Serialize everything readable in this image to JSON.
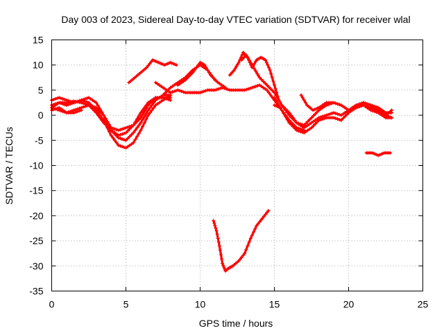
{
  "chart_data": {
    "type": "scatter",
    "title": "Day 003 of 2023, Sidereal Day-to-day VTEC variation (SDTVAR) for receiver wlal",
    "xlabel": "GPS time / hours",
    "ylabel": "SDTVAR / TECUs",
    "xlim": [
      0,
      25
    ],
    "ylim": [
      -35,
      15
    ],
    "xticks": [
      "0",
      "5",
      "10",
      "15",
      "20",
      "25"
    ],
    "yticks": [
      "15",
      "10",
      "5",
      "0",
      "-5",
      "-10",
      "-15",
      "-20",
      "-25",
      "-30",
      "-35"
    ],
    "grid": true,
    "marker": "cross",
    "color": "#ff0000",
    "series": [
      {
        "x": [
          0.0,
          0.5,
          1.0,
          1.5,
          2.0,
          2.5,
          3.0,
          3.5,
          4.0,
          4.5,
          5.0,
          5.5,
          6.0,
          6.5,
          7.0,
          7.5,
          8.0
        ],
        "y": [
          3.0,
          3.5,
          3.0,
          2.5,
          3.0,
          2.5,
          1.0,
          -1.0,
          -4.0,
          -6.0,
          -6.5,
          -5.5,
          -3.0,
          0.0,
          2.0,
          3.0,
          4.0
        ]
      },
      {
        "x": [
          0.0,
          0.5,
          1.0,
          1.5,
          2.0,
          2.5,
          3.0,
          3.5,
          4.0,
          4.5,
          5.0,
          5.5,
          6.0,
          6.5,
          7.0,
          7.5,
          8.0
        ],
        "y": [
          1.5,
          2.5,
          2.5,
          2.8,
          2.5,
          2.0,
          0.5,
          -1.5,
          -3.0,
          -4.0,
          -3.5,
          -2.0,
          0.5,
          2.5,
          3.5,
          3.5,
          3.5
        ]
      },
      {
        "x": [
          0.0,
          0.5,
          1.0,
          1.5,
          2.0,
          2.5,
          3.0,
          3.5,
          4.0,
          4.5,
          5.0,
          5.5,
          6.0,
          6.5,
          7.0,
          7.5,
          8.0
        ],
        "y": [
          2.0,
          2.5,
          2.0,
          2.5,
          3.0,
          3.5,
          2.5,
          0.0,
          -3.0,
          -4.5,
          -5.0,
          -3.5,
          -1.5,
          1.0,
          3.0,
          4.0,
          4.0
        ]
      },
      {
        "x": [
          0.0,
          0.5,
          1.0,
          1.5,
          2.0,
          2.5,
          3.0,
          3.5,
          4.0,
          4.5,
          5.0,
          5.5,
          6.0,
          6.5,
          7.0,
          7.5,
          8.0
        ],
        "y": [
          1.0,
          1.5,
          0.5,
          1.0,
          1.5,
          2.0,
          1.5,
          0.0,
          -2.5,
          -3.0,
          -2.5,
          -2.0,
          -0.5,
          2.0,
          3.5,
          3.5,
          3.0
        ]
      },
      {
        "x": [
          0.0,
          0.5,
          1.0,
          1.5,
          2.0
        ],
        "y": [
          1.5,
          1.0,
          0.5,
          0.5,
          1.0
        ]
      },
      {
        "x": [
          5.2,
          5.6,
          6.0,
          6.4,
          6.8,
          7.2,
          7.6,
          8.0,
          8.4
        ],
        "y": [
          6.5,
          7.5,
          8.5,
          9.5,
          11.0,
          10.5,
          10.0,
          10.5,
          10.0
        ]
      },
      {
        "x": [
          7.0,
          7.5,
          8.0,
          8.5,
          9.0,
          9.5,
          10.0,
          10.5,
          11.0,
          11.5,
          12.0,
          12.5,
          13.0,
          13.5,
          14.0,
          14.5,
          15.0,
          15.5,
          16.0,
          16.5,
          17.0
        ],
        "y": [
          6.5,
          5.5,
          4.5,
          5.0,
          4.5,
          4.5,
          4.5,
          5.0,
          5.0,
          5.5,
          5.0,
          5.0,
          5.0,
          5.5,
          6.0,
          5.0,
          3.0,
          1.0,
          -1.0,
          -2.5,
          -3.0
        ]
      },
      {
        "x": [
          7.5,
          8.0,
          8.5,
          9.0,
          9.5,
          10.0,
          10.5,
          11.0
        ],
        "y": [
          4.0,
          5.5,
          6.5,
          7.5,
          9.0,
          10.0,
          9.0,
          7.0
        ]
      },
      {
        "x": [
          8.5,
          9.0,
          9.5,
          10.0,
          10.3,
          10.7,
          11.2,
          11.7
        ],
        "y": [
          6.0,
          7.0,
          8.5,
          10.5,
          10.0,
          8.0,
          6.5,
          5.5
        ]
      },
      {
        "x": [
          12.0,
          12.3,
          12.6,
          12.9,
          13.2,
          13.5,
          13.8,
          14.1,
          14.4,
          14.7,
          15.0,
          15.3
        ],
        "y": [
          8.0,
          9.0,
          10.5,
          12.5,
          11.5,
          9.5,
          11.0,
          11.5,
          11.0,
          9.0,
          6.0,
          3.0
        ]
      },
      {
        "x": [
          12.8,
          13.1,
          13.4,
          13.7,
          14.0,
          14.5,
          15.0,
          15.5,
          16.0,
          16.5,
          17.0,
          17.5,
          18.0,
          18.5,
          19.0,
          19.5,
          20.0,
          20.5,
          21.0,
          21.5,
          22.0,
          22.5,
          22.9
        ],
        "y": [
          11.0,
          12.0,
          10.5,
          9.0,
          7.5,
          6.0,
          4.5,
          2.0,
          0.0,
          -1.5,
          -2.5,
          -1.5,
          -0.5,
          0.0,
          0.5,
          0.0,
          1.0,
          2.0,
          2.5,
          2.0,
          1.0,
          0.0,
          -0.5
        ]
      },
      {
        "x": [
          15.0,
          15.5,
          16.0,
          16.5,
          17.0,
          17.5,
          18.0,
          18.5,
          19.0,
          19.5,
          20.0,
          20.5,
          21.0,
          21.5,
          22.0,
          22.5,
          22.9
        ],
        "y": [
          3.5,
          1.0,
          -1.5,
          -3.0,
          -3.5,
          -2.5,
          -1.0,
          -0.5,
          -0.5,
          -1.0,
          0.5,
          1.5,
          2.0,
          1.0,
          0.5,
          -0.5,
          -0.5
        ]
      },
      {
        "x": [
          15.5,
          16.0,
          16.5,
          17.0,
          17.5,
          18.0,
          18.5,
          19.0,
          19.5,
          20.0,
          20.5,
          21.0,
          21.5,
          22.0,
          22.5,
          22.9
        ],
        "y": [
          2.0,
          0.5,
          -1.5,
          -2.0,
          -0.5,
          1.0,
          2.0,
          2.5,
          2.0,
          1.0,
          1.5,
          2.5,
          2.0,
          1.5,
          0.5,
          0.5
        ]
      },
      {
        "x": [
          15.0,
          15.4
        ],
        "y": [
          2.0,
          1.5
        ]
      },
      {
        "x": [
          16.8,
          17.2,
          17.6,
          18.0,
          18.5,
          19.0,
          19.5,
          20.0,
          20.5,
          21.0,
          21.5,
          22.0,
          22.5,
          22.9
        ],
        "y": [
          4.0,
          2.0,
          1.0,
          1.5,
          2.5,
          2.5,
          2.0,
          1.0,
          1.5,
          2.0,
          1.5,
          0.5,
          0.0,
          1.0
        ]
      },
      {
        "x": [
          21.2,
          21.6,
          22.0,
          22.4,
          22.8
        ],
        "y": [
          -7.5,
          -7.5,
          -8.0,
          -7.5,
          -7.5
        ]
      },
      {
        "x": [
          10.9,
          11.1,
          11.3,
          11.5,
          11.7,
          11.9,
          12.2,
          12.6,
          13.0,
          13.4,
          13.8,
          14.2,
          14.6
        ],
        "y": [
          -21.0,
          -23.0,
          -26.0,
          -29.5,
          -31.0,
          -30.5,
          -30.0,
          -29.0,
          -27.5,
          -24.5,
          -22.0,
          -20.5,
          -19.0
        ]
      }
    ]
  }
}
